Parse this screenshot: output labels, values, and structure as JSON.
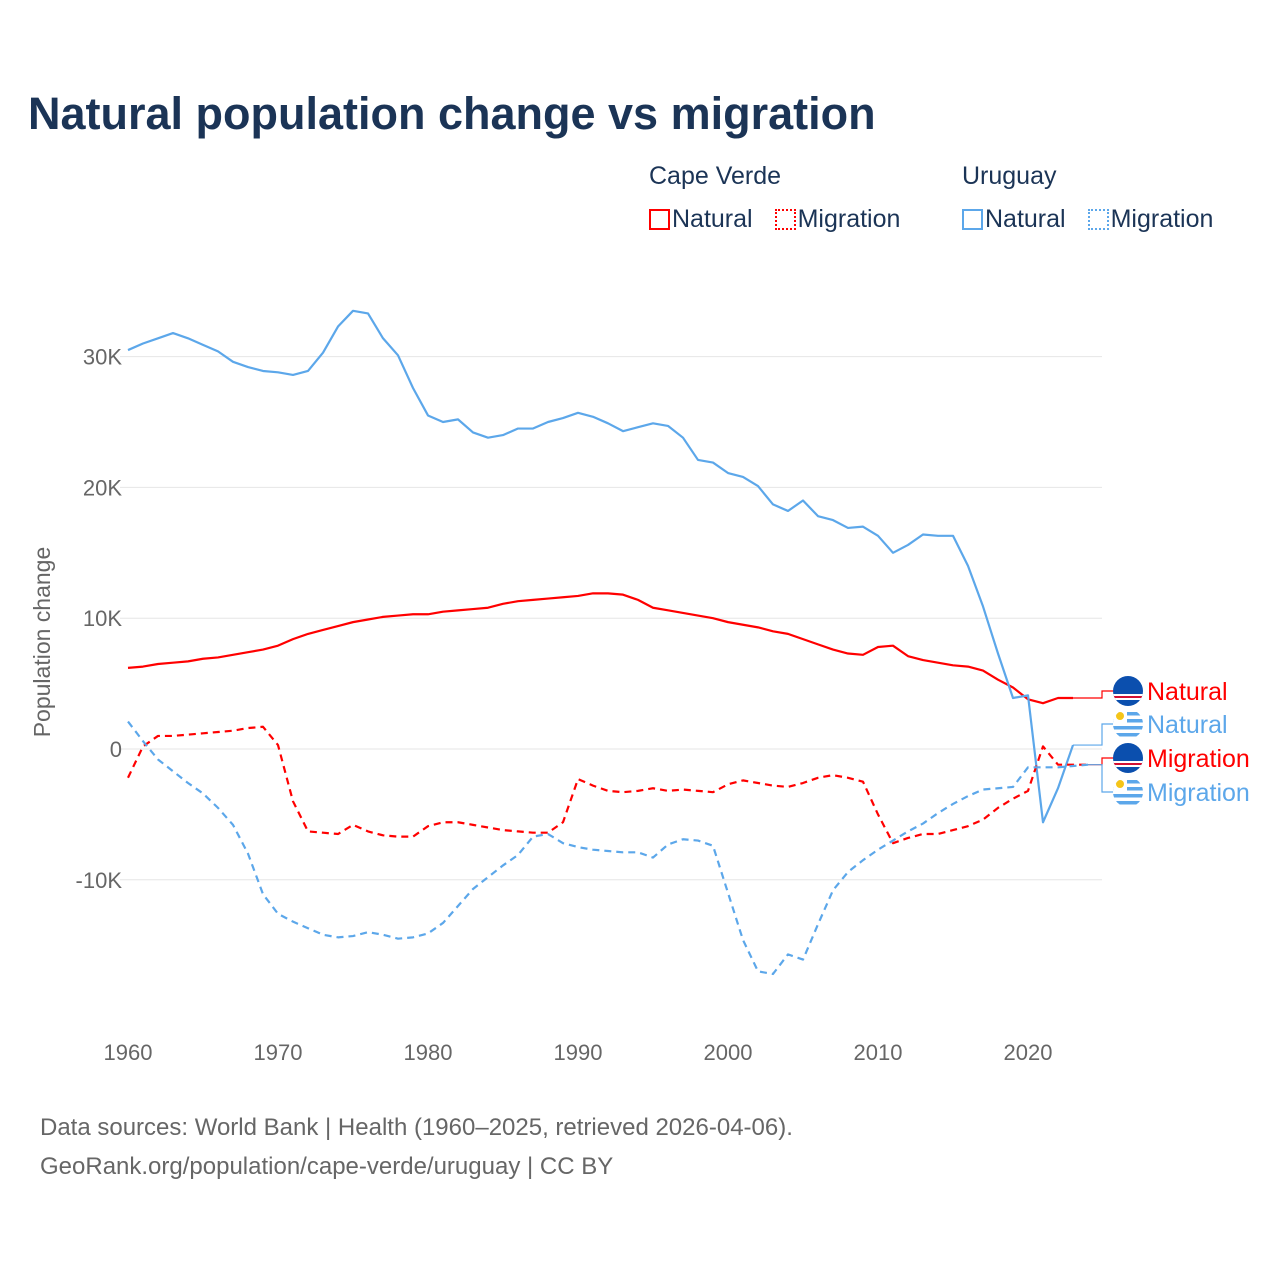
{
  "chart_data": {
    "type": "line",
    "title": "Natural population change vs migration",
    "ylabel": "Population change",
    "xlabel": "",
    "xlim": [
      1960,
      2025
    ],
    "ylim": [
      -20000,
      35000
    ],
    "grid": true,
    "x_ticks": [
      "1960",
      "1970",
      "1980",
      "1990",
      "2000",
      "2010",
      "2020"
    ],
    "y_ticks": [
      {
        "v": 30000,
        "label": "30K"
      },
      {
        "v": 20000,
        "label": "20K"
      },
      {
        "v": 10000,
        "label": "10K"
      },
      {
        "v": 0,
        "label": "0"
      },
      {
        "v": -10000,
        "label": "-10K"
      }
    ],
    "start_year": 1960,
    "legend": {
      "placement": "top-right",
      "groups": [
        {
          "country": "Cape Verde",
          "natural": "Natural",
          "migration": "Migration"
        },
        {
          "country": "Uruguay",
          "natural": "Natural",
          "migration": "Migration"
        }
      ]
    },
    "series": [
      {
        "name": "Cape Verde Natural",
        "label": "Natural",
        "color": "#ff0000",
        "dashed": false,
        "flag": "cape-verde",
        "values": [
          6200,
          6300,
          6500,
          6600,
          6700,
          6900,
          7000,
          7200,
          7400,
          7600,
          7900,
          8400,
          8800,
          9100,
          9400,
          9700,
          9900,
          10100,
          10200,
          10300,
          10300,
          10500,
          10600,
          10700,
          10800,
          11100,
          11300,
          11400,
          11500,
          11600,
          11700,
          11900,
          11900,
          11800,
          11400,
          10800,
          10600,
          10400,
          10200,
          10000,
          9700,
          9500,
          9300,
          9000,
          8800,
          8400,
          8000,
          7600,
          7300,
          7200,
          7800,
          7900,
          7100,
          6800,
          6600,
          6400,
          6300,
          6000,
          5300,
          4700,
          3800,
          3500,
          3900,
          3900
        ]
      },
      {
        "name": "Uruguay Natural",
        "label": "Natural",
        "color": "#5ca7ea",
        "dashed": false,
        "flag": "uruguay",
        "values": [
          30500,
          31000,
          31400,
          31800,
          31400,
          30900,
          30400,
          29600,
          29200,
          28900,
          28800,
          28600,
          28900,
          30300,
          32300,
          33500,
          33300,
          31400,
          30100,
          27600,
          25500,
          25000,
          25200,
          24200,
          23800,
          24000,
          24500,
          24500,
          25000,
          25300,
          25700,
          25400,
          24900,
          24300,
          24600,
          24900,
          24700,
          23800,
          22100,
          21900,
          21100,
          20800,
          20100,
          18700,
          18200,
          19000,
          17800,
          17500,
          16900,
          17000,
          16300,
          15000,
          15600,
          16400,
          16300,
          16300,
          14000,
          10900,
          7300,
          3900,
          4100,
          -5600,
          -3000,
          300
        ]
      },
      {
        "name": "Cape Verde Migration",
        "label": "Migration",
        "color": "#ff0000",
        "dashed": true,
        "flag": "cape-verde",
        "values": [
          -2200,
          200,
          1000,
          1000,
          1100,
          1200,
          1300,
          1400,
          1600,
          1700,
          300,
          -4000,
          -6300,
          -6400,
          -6500,
          -5800,
          -6300,
          -6600,
          -6700,
          -6700,
          -5900,
          -5600,
          -5600,
          -5800,
          -6000,
          -6200,
          -6300,
          -6400,
          -6400,
          -5600,
          -2300,
          -2800,
          -3200,
          -3300,
          -3200,
          -3000,
          -3200,
          -3100,
          -3200,
          -3300,
          -2700,
          -2400,
          -2600,
          -2800,
          -2900,
          -2600,
          -2200,
          -2000,
          -2200,
          -2500,
          -5000,
          -7200,
          -6800,
          -6500,
          -6500,
          -6200,
          -5900,
          -5400,
          -4500,
          -3800,
          -3200,
          200,
          -1200,
          -1200,
          -1200
        ]
      },
      {
        "name": "Uruguay Migration",
        "label": "Migration",
        "color": "#5ca7ea",
        "dashed": true,
        "flag": "uruguay",
        "values": [
          2100,
          600,
          -800,
          -1700,
          -2600,
          -3400,
          -4500,
          -5800,
          -8000,
          -11100,
          -12600,
          -13200,
          -13700,
          -14200,
          -14400,
          -14300,
          -14000,
          -14200,
          -14500,
          -14400,
          -14100,
          -13300,
          -12000,
          -10700,
          -9800,
          -8900,
          -8100,
          -6700,
          -6500,
          -7200,
          -7500,
          -7700,
          -7800,
          -7900,
          -7900,
          -8300,
          -7300,
          -6900,
          -7000,
          -7400,
          -11000,
          -14600,
          -17000,
          -17200,
          -15700,
          -16100,
          -13400,
          -10800,
          -9400,
          -8500,
          -7700,
          -7000,
          -6300,
          -5700,
          -4900,
          -4200,
          -3600,
          -3100,
          -3000,
          -2900,
          -1400,
          -1400,
          -1400,
          -1300,
          -1200
        ]
      }
    ]
  },
  "footer": {
    "line1": "Data sources: World Bank | Health (1960–2025, retrieved 2026-04-06).",
    "line2": "GeoRank.org/population/cape-verde/uruguay | CC BY"
  }
}
